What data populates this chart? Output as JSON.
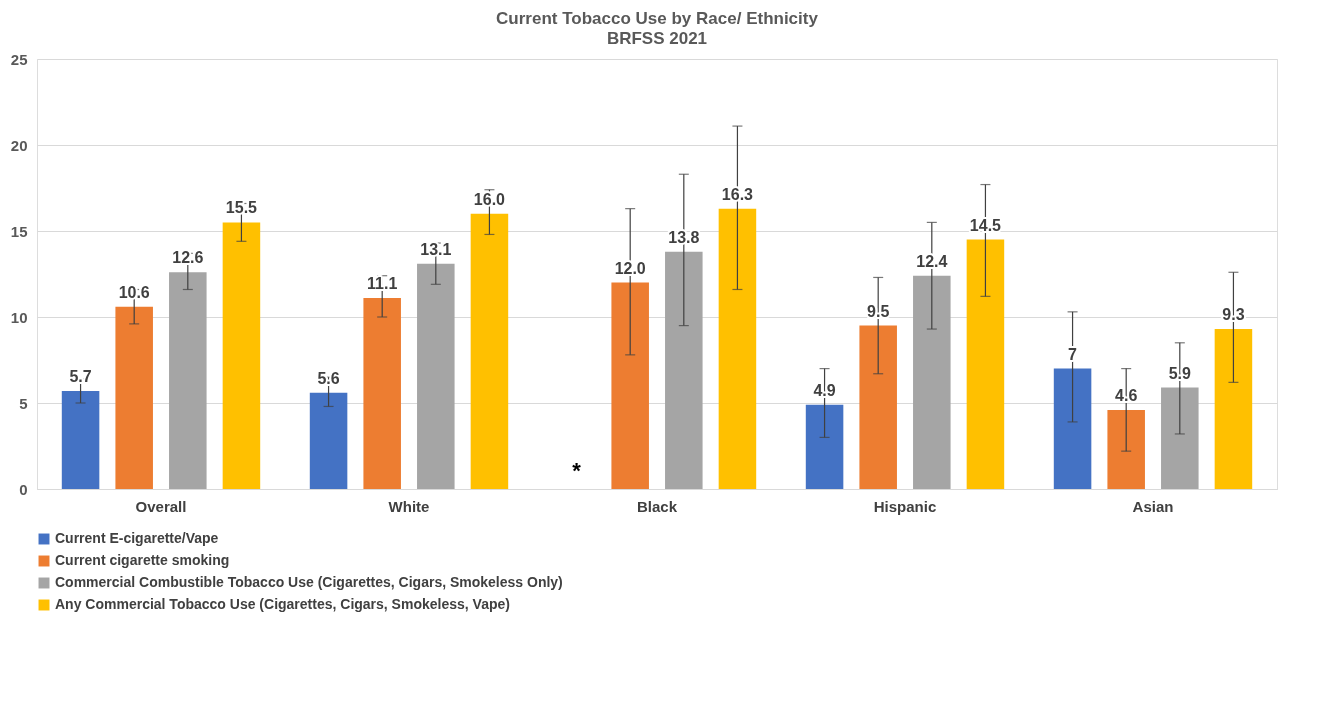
{
  "chart_data": {
    "type": "bar",
    "title": "Current Tobacco Use by Race/ Ethnicity",
    "subtitle": "BRFSS 2021",
    "categories": [
      "Overall",
      "White",
      "Black",
      "Hispanic",
      "Asian"
    ],
    "series": [
      {
        "name": "Current E-cigarette/Vape",
        "color": "#4472c4",
        "values": [
          5.7,
          5.6,
          null,
          4.9,
          7.0
        ],
        "value_labels": [
          "5.7",
          "5.6",
          null,
          "4.9",
          "7"
        ],
        "errors": [
          [
            5.0,
            6.4
          ],
          [
            4.8,
            6.5
          ],
          null,
          [
            3.0,
            7.0
          ],
          [
            3.9,
            10.3
          ]
        ]
      },
      {
        "name": "Current cigarette smoking",
        "color": "#ed7d31",
        "values": [
          10.6,
          11.1,
          12.0,
          9.5,
          4.6
        ],
        "value_labels": [
          "10.6",
          "11.1",
          "12.0",
          "9.5",
          "4.6"
        ],
        "errors": [
          [
            9.6,
            11.6
          ],
          [
            10.0,
            12.4
          ],
          [
            7.8,
            16.3
          ],
          [
            6.7,
            12.3
          ],
          [
            2.2,
            7.0
          ]
        ]
      },
      {
        "name": "Commercial Combustible Tobacco Use (Cigarettes, Cigars, Smokeless Only)",
        "color": "#a5a5a5",
        "values": [
          12.6,
          13.1,
          13.8,
          12.4,
          5.9
        ],
        "value_labels": [
          "12.6",
          "13.1",
          "13.8",
          "12.4",
          "5.9"
        ],
        "errors": [
          [
            11.6,
            13.7
          ],
          [
            11.9,
            14.3
          ],
          [
            9.5,
            18.3
          ],
          [
            9.3,
            15.5
          ],
          [
            3.2,
            8.5
          ]
        ]
      },
      {
        "name": "Any Commercial Tobacco Use (Cigarettes, Cigars, Smokeless, Vape)",
        "color": "#ffc000",
        "values": [
          15.5,
          16.0,
          16.3,
          14.5,
          9.3
        ],
        "value_labels": [
          "15.5",
          "16.0",
          "16.3",
          "14.5",
          "9.3"
        ],
        "errors": [
          [
            14.4,
            16.6
          ],
          [
            14.8,
            17.4
          ],
          [
            11.6,
            21.1
          ],
          [
            11.2,
            17.7
          ],
          [
            6.2,
            12.6
          ]
        ]
      }
    ],
    "ylim": [
      0,
      25
    ],
    "yticks": [
      0,
      5,
      10,
      15,
      20,
      25
    ],
    "grid": "y",
    "legend": "bottom",
    "annotations": [
      "*"
    ]
  }
}
